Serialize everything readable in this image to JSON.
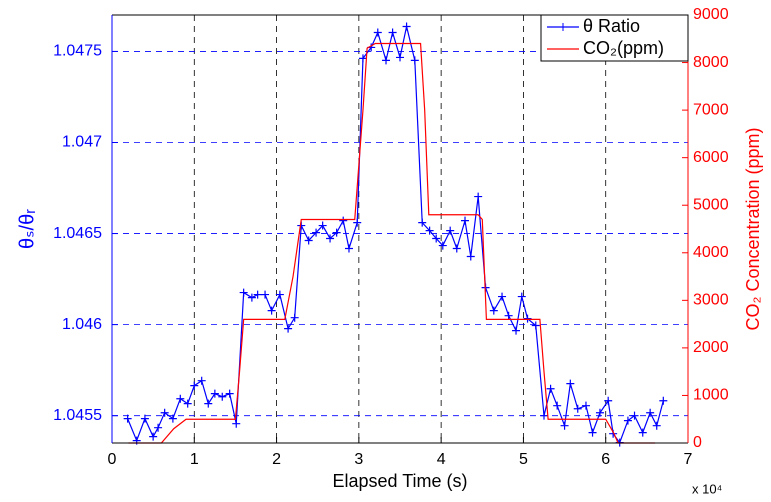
{
  "chart_data": {
    "type": "line",
    "x_label": "Elapsed Time (s)",
    "x_multiplier": "x 10⁴",
    "y_label": "θₛ/θᵣ",
    "y2_label": "CO₂ Concentration (ppm)",
    "xlim": [
      0,
      7
    ],
    "xticks": [
      0,
      1,
      2,
      3,
      4,
      5,
      6,
      7
    ],
    "ylim": [
      1.04535,
      1.0477
    ],
    "yticks": [
      1.0455,
      1.046,
      1.0465,
      1.047,
      1.0475
    ],
    "y2lim": [
      0,
      9000
    ],
    "y2ticks": [
      0,
      1000,
      2000,
      3000,
      4000,
      5000,
      6000,
      7000,
      8000,
      9000
    ],
    "grid": true,
    "legend": "upper right",
    "series": [
      {
        "name": "θ Ratio",
        "color": "#0000ff",
        "marker": "+",
        "x": [
          0.19,
          0.3,
          0.4,
          0.5,
          0.56,
          0.64,
          0.74,
          0.83,
          0.92,
          1.0,
          1.09,
          1.17,
          1.25,
          1.34,
          1.43,
          1.51,
          1.6,
          1.7,
          1.77,
          1.86,
          1.94,
          2.04,
          2.14,
          2.22,
          2.3,
          2.39,
          2.48,
          2.56,
          2.65,
          2.73,
          2.81,
          2.88,
          2.98,
          3.05,
          3.15,
          3.23,
          3.33,
          3.41,
          3.5,
          3.58,
          3.68,
          3.77,
          3.86,
          3.94,
          4.02,
          4.11,
          4.19,
          4.29,
          4.36,
          4.45,
          4.54,
          4.64,
          4.74,
          4.82,
          4.91,
          4.98,
          5.05,
          5.15,
          5.25,
          5.33,
          5.41,
          5.5,
          5.57,
          5.66,
          5.76,
          5.84,
          5.93,
          6.03,
          6.09,
          6.17,
          6.27,
          6.35,
          6.45,
          6.54,
          6.62,
          6.7
        ],
        "values": [
          1.045484,
          1.045363,
          1.045484,
          1.045385,
          1.045434,
          1.045516,
          1.045484,
          1.045593,
          1.045566,
          1.045665,
          1.045692,
          1.045566,
          1.045621,
          1.045604,
          1.045621,
          1.045456,
          1.046176,
          1.046148,
          1.046165,
          1.046165,
          1.046077,
          1.046165,
          1.045978,
          1.046038,
          1.046544,
          1.046462,
          1.046505,
          1.046544,
          1.046473,
          1.046505,
          1.046571,
          1.046418,
          1.04656,
          1.047462,
          1.047522,
          1.047604,
          1.047451,
          1.047604,
          1.047467,
          1.047637,
          1.047451,
          1.04656,
          1.046516,
          1.046473,
          1.046434,
          1.046516,
          1.046418,
          1.046571,
          1.046374,
          1.046703,
          1.046203,
          1.046077,
          1.046154,
          1.046049,
          1.045967,
          1.046154,
          1.046033,
          1.045995,
          1.0455,
          1.045648,
          1.045555,
          1.045445,
          1.045676,
          1.045538,
          1.045555,
          1.045407,
          1.045516,
          1.045582,
          1.045401,
          1.045352,
          1.045473,
          1.0455,
          1.045407,
          1.045516,
          1.045445,
          1.045582
        ]
      },
      {
        "name": "CO₂(ppm)",
        "color": "#ff0000",
        "axis": "y2",
        "x": [
          0.2,
          0.6,
          0.75,
          0.9,
          1.5,
          1.55,
          1.6,
          2.1,
          2.2,
          2.3,
          2.95,
          3.05,
          3.1,
          3.2,
          3.75,
          3.8,
          3.85,
          4.45,
          4.5,
          4.55,
          5.2,
          5.25,
          5.3,
          6.0,
          6.1,
          6.15,
          6.6
        ],
        "values": [
          0,
          0,
          300,
          500,
          500,
          1500,
          2600,
          2600,
          3500,
          4700,
          4700,
          7000,
          8300,
          8400,
          8400,
          7000,
          4800,
          4800,
          4700,
          2600,
          2600,
          1500,
          500,
          500,
          200,
          0,
          0
        ]
      }
    ]
  }
}
